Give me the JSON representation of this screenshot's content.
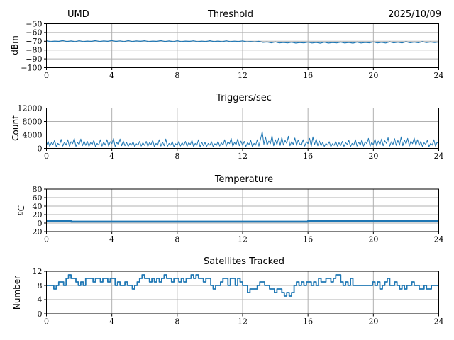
{
  "colors": {
    "line": "#1f77b4",
    "grid": "#b0b0b0",
    "axis": "#000000",
    "background": "#ffffff"
  },
  "header": {
    "station": "UMD",
    "date": "2025/10/09"
  },
  "chart_data": [
    {
      "name": "threshold",
      "type": "line",
      "title": "Threshold",
      "title_left": "UMD",
      "title_right": "2025/10/09",
      "ylabel": "dBm",
      "xlim": [
        0,
        24
      ],
      "ylim": [
        -100,
        -50
      ],
      "xticks": [
        0,
        4,
        8,
        12,
        16,
        20,
        24
      ],
      "yticks": [
        -50,
        -60,
        -70,
        -80,
        -90,
        -100
      ],
      "grid": true,
      "x_step": 0.25,
      "values": [
        -69.4,
        -70.4,
        -69.8,
        -70.2,
        -69.3,
        -70.3,
        -69.7,
        -70.5,
        -69.4,
        -70.4,
        -69.8,
        -70.2,
        -69.3,
        -70.3,
        -69.7,
        -70.1,
        -69.2,
        -70.2,
        -69.6,
        -70.4,
        -69.3,
        -70.3,
        -69.7,
        -70.1,
        -69.4,
        -70.4,
        -69.8,
        -70.2,
        -69.3,
        -70.3,
        -69.7,
        -70.5,
        -69.4,
        -70.4,
        -69.8,
        -70.2,
        -69.5,
        -70.5,
        -69.9,
        -70.3,
        -69.4,
        -70.4,
        -69.8,
        -70.6,
        -69.5,
        -70.5,
        -69.9,
        -70.3,
        -69.6,
        -70.7,
        -70.3,
        -70.8,
        -70.1,
        -71.3,
        -70.9,
        -71.8,
        -70.8,
        -71.9,
        -71.4,
        -71.9,
        -71.1,
        -72.1,
        -71.5,
        -71.9,
        -71.0,
        -72.0,
        -71.4,
        -72.2,
        -71.1,
        -72.1,
        -71.5,
        -71.9,
        -71.0,
        -72.0,
        -71.4,
        -72.2,
        -71.0,
        -72.0,
        -71.4,
        -71.8,
        -70.8,
        -71.9,
        -71.2,
        -72.0,
        -70.7,
        -71.8,
        -71.1,
        -71.9,
        -70.6,
        -71.7,
        -71.0,
        -71.7,
        -70.5,
        -71.5,
        -70.9,
        -71.5,
        -70.9
      ]
    },
    {
      "name": "triggers",
      "type": "line",
      "title": "Triggers/sec",
      "ylabel": "Count",
      "xlim": [
        0,
        24
      ],
      "ylim": [
        0,
        12000
      ],
      "xticks": [
        0,
        4,
        8,
        12,
        16,
        20,
        24
      ],
      "yticks": [
        0,
        4000,
        8000,
        12000
      ],
      "grid": true,
      "x_step": 0.1,
      "values": [
        900,
        2100,
        600,
        1700,
        1200,
        2400,
        500,
        1500,
        1000,
        2700,
        700,
        1900,
        1000,
        2600,
        700,
        2000,
        1400,
        3000,
        600,
        1800,
        1100,
        2800,
        800,
        2200,
        900,
        2100,
        600,
        1700,
        1200,
        2400,
        500,
        1500,
        1000,
        2600,
        700,
        1900,
        1000,
        2600,
        700,
        2000,
        1400,
        2900,
        600,
        1800,
        1100,
        2800,
        800,
        2200,
        800,
        1800,
        600,
        1500,
        1000,
        2000,
        500,
        1400,
        900,
        2100,
        700,
        1700,
        900,
        2100,
        600,
        1700,
        1200,
        2400,
        500,
        1500,
        1000,
        2600,
        700,
        1900,
        800,
        2800,
        600,
        1500,
        1000,
        2000,
        500,
        1400,
        900,
        2100,
        700,
        1700,
        900,
        2100,
        600,
        1700,
        1200,
        2400,
        500,
        1500,
        1000,
        2600,
        400,
        1900,
        800,
        1800,
        600,
        1500,
        1000,
        2000,
        500,
        1400,
        900,
        2100,
        700,
        1700,
        1000,
        2600,
        700,
        2000,
        1400,
        3000,
        600,
        1800,
        1100,
        2800,
        800,
        2200,
        900,
        2100,
        600,
        1700,
        1200,
        2400,
        500,
        1500,
        1000,
        2600,
        700,
        2800,
        5000,
        1200,
        3400,
        900,
        2200,
        1400,
        3800,
        800,
        2600,
        1100,
        3000,
        900,
        3300,
        1000,
        2400,
        1500,
        3600,
        800,
        2000,
        1200,
        3100,
        900,
        2500,
        1300,
        1000,
        2600,
        700,
        2000,
        1400,
        3000,
        600,
        3400,
        1100,
        2800,
        800,
        2200,
        800,
        1800,
        600,
        1500,
        1000,
        2000,
        500,
        1400,
        900,
        2100,
        700,
        1700,
        900,
        2100,
        600,
        1700,
        1200,
        2400,
        500,
        1500,
        1000,
        2600,
        700,
        1900,
        1000,
        2600,
        700,
        2000,
        1400,
        3000,
        600,
        1800,
        1100,
        2800,
        800,
        2200,
        1100,
        2800,
        800,
        2300,
        1500,
        3200,
        700,
        2000,
        1200,
        2900,
        900,
        2400,
        1000,
        3400,
        800,
        2500,
        1300,
        3000,
        700,
        2200,
        1400,
        3100,
        900,
        2600,
        900,
        2100,
        600,
        1700,
        1200,
        2400,
        500,
        1500,
        1000,
        2600,
        700,
        1900,
        1200
      ]
    },
    {
      "name": "temperature",
      "type": "line",
      "title": "Temperature",
      "ylabel": "ºC",
      "xlim": [
        0,
        24
      ],
      "ylim": [
        -20,
        80
      ],
      "xticks": [
        0,
        4,
        8,
        12,
        16,
        20,
        24
      ],
      "yticks": [
        -20,
        0,
        20,
        40,
        60,
        80
      ],
      "grid": true,
      "points": [
        [
          0,
          5
        ],
        [
          1.5,
          5
        ],
        [
          1.5,
          3.5
        ],
        [
          16,
          3.5
        ],
        [
          16,
          4.8
        ],
        [
          24,
          4.8
        ]
      ]
    },
    {
      "name": "satellites",
      "type": "line",
      "title": "Satellites Tracked",
      "ylabel": "Number",
      "xlim": [
        0,
        24
      ],
      "ylim": [
        0,
        12
      ],
      "xticks": [
        0,
        4,
        8,
        12,
        16,
        20,
        24
      ],
      "yticks": [
        0,
        4,
        8,
        12
      ],
      "grid": true,
      "step_line": true,
      "x_step": 0.15,
      "values": [
        8,
        8,
        8,
        7,
        8,
        9,
        9,
        8,
        10,
        11,
        10,
        10,
        9,
        8,
        9,
        8,
        10,
        10,
        10,
        9,
        10,
        10,
        9,
        10,
        10,
        9,
        10,
        10,
        8,
        9,
        8,
        8,
        9,
        8,
        8,
        7,
        8,
        9,
        10,
        11,
        10,
        10,
        9,
        10,
        9,
        10,
        9,
        10,
        11,
        10,
        10,
        9,
        10,
        10,
        9,
        10,
        9,
        10,
        10,
        11,
        10,
        11,
        10,
        10,
        9,
        10,
        10,
        8,
        7,
        8,
        8,
        9,
        10,
        10,
        8,
        10,
        10,
        8,
        10,
        9,
        8,
        8,
        6,
        7,
        7,
        7,
        8,
        9,
        9,
        8,
        8,
        7,
        7,
        6,
        7,
        7,
        6,
        5,
        6,
        5,
        6,
        8,
        9,
        8,
        9,
        8,
        9,
        9,
        8,
        9,
        8,
        10,
        9,
        9,
        10,
        10,
        9,
        10,
        11,
        11,
        9,
        8,
        9,
        8,
        10,
        8,
        8,
        8,
        8,
        8,
        8,
        8,
        8,
        9,
        8,
        9,
        7,
        8,
        9,
        10,
        8,
        8,
        9,
        8,
        7,
        8,
        7,
        8,
        8,
        9,
        8,
        8,
        7,
        7,
        8,
        7,
        7,
        8,
        8,
        8,
        8
      ]
    }
  ]
}
